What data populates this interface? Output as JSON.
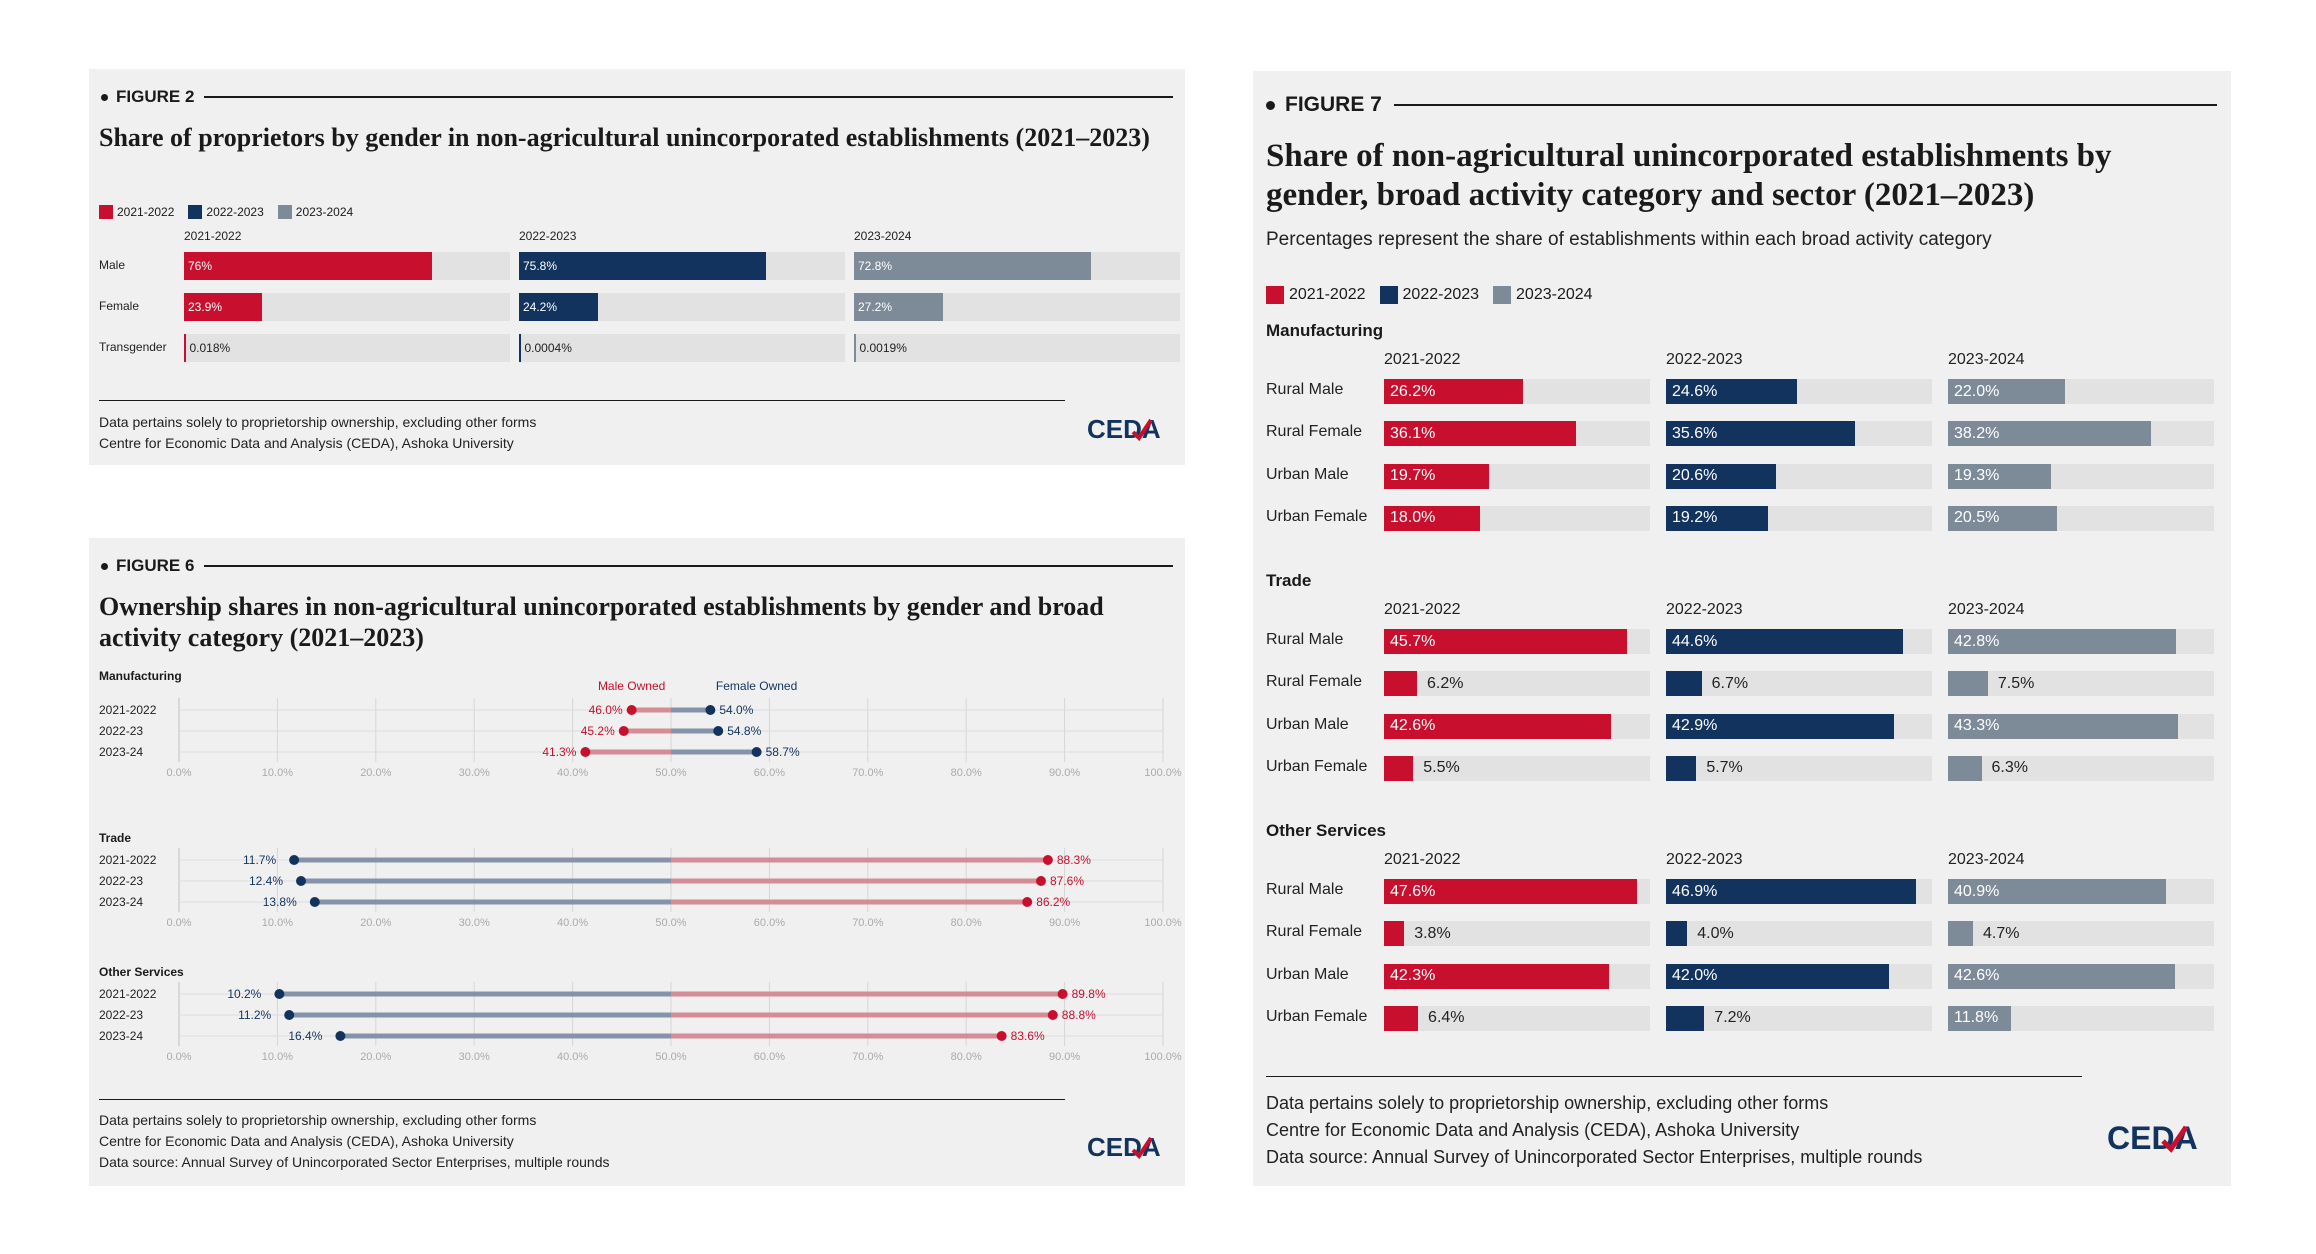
{
  "colors": {
    "y2021": "#c8102e",
    "y2022": "#13335f",
    "y2023": "#7d8b99",
    "male": "#c8102e",
    "female": "#13335f"
  },
  "fig2": {
    "label": "FIGURE 2",
    "title": "Share of proprietors by gender in non-agricultural unincorporated establishments (2021–2023)",
    "legend": [
      "2021-2022",
      "2022-2023",
      "2023-2024"
    ],
    "footer": [
      "Data pertains solely to proprietorship ownership, excluding other forms",
      "Centre for Economic Data and Analysis (CEDA), Ashoka University"
    ],
    "logo": "CEDA"
  },
  "fig6": {
    "label": "FIGURE 6",
    "title": "Ownership shares in non-agricultural unincorporated establishments by gender and broad activity category (2021–2023)",
    "footer": [
      "Data pertains solely to proprietorship ownership, excluding other forms",
      "Centre for Economic Data and Analysis (CEDA), Ashoka University",
      "Data source: Annual Survey of Unincorporated Sector Enterprises, multiple rounds"
    ],
    "logo": "CEDA"
  },
  "fig7": {
    "label": "FIGURE 7",
    "title": "Share of non-agricultural unincorporated establishments by gender, broad activity category and sector (2021–2023)",
    "subtitle": "Percentages represent the share of establishments within each broad activity category",
    "legend": [
      "2021-2022",
      "2022-2023",
      "2023-2024"
    ],
    "footer": [
      "Data pertains solely to proprietorship ownership, excluding other forms",
      "Centre for Economic Data and Analysis (CEDA), Ashoka University",
      "Data source: Annual Survey of Unincorporated Sector Enterprises, multiple rounds"
    ],
    "logo": "CEDA"
  },
  "chart_data": [
    {
      "id": "fig2",
      "type": "bar",
      "title": "Share of proprietors by gender in non-agricultural unincorporated establishments (2021–2023)",
      "categories": [
        "Male",
        "Female",
        "Transgender"
      ],
      "series": [
        {
          "name": "2021-2022",
          "values": [
            76,
            23.9,
            0.018
          ],
          "labels": [
            "76%",
            "23.9%",
            "0.018%"
          ]
        },
        {
          "name": "2022-2023",
          "values": [
            75.8,
            24.2,
            0.0004
          ],
          "labels": [
            "75.8%",
            "24.2%",
            "0.0004%"
          ]
        },
        {
          "name": "2023-2024",
          "values": [
            72.8,
            27.2,
            0.0019
          ],
          "labels": [
            "72.8%",
            "27.2%",
            "0.0019%"
          ]
        }
      ],
      "ylim": [
        0,
        100
      ]
    },
    {
      "id": "fig6",
      "type": "scatter",
      "title": "Ownership shares in non-agricultural unincorporated establishments by gender and broad activity category (2021–2023)",
      "annotations": {
        "male": "Male Owned",
        "female": "Female Owned"
      },
      "xticks": [
        "0.0%",
        "10.0%",
        "20.0%",
        "30.0%",
        "40.0%",
        "50.0%",
        "60.0%",
        "70.0%",
        "80.0%",
        "90.0%",
        "100.0%"
      ],
      "xlim": [
        0,
        100
      ],
      "groups": [
        {
          "name": "Manufacturing",
          "rows": [
            {
              "year": "2021-2022",
              "male": 46.0,
              "female": 54.0,
              "male_label": "46.0%",
              "female_label": "54.0%"
            },
            {
              "year": "2022-23",
              "male": 45.2,
              "female": 54.8,
              "male_label": "45.2%",
              "female_label": "54.8%"
            },
            {
              "year": "2023-24",
              "male": 41.3,
              "female": 58.7,
              "male_label": "41.3%",
              "female_label": "58.7%"
            }
          ]
        },
        {
          "name": "Trade",
          "rows": [
            {
              "year": "2021-2022",
              "male": 88.3,
              "female": 11.7,
              "male_label": "88.3%",
              "female_label": "11.7%"
            },
            {
              "year": "2022-23",
              "male": 87.6,
              "female": 12.4,
              "male_label": "87.6%",
              "female_label": "12.4%"
            },
            {
              "year": "2023-24",
              "male": 86.2,
              "female": 13.8,
              "male_label": "86.2%",
              "female_label": "13.8%"
            }
          ]
        },
        {
          "name": "Other Services",
          "rows": [
            {
              "year": "2021-2022",
              "male": 89.8,
              "female": 10.2,
              "male_label": "89.8%",
              "female_label": "10.2%"
            },
            {
              "year": "2022-23",
              "male": 88.8,
              "female": 11.2,
              "male_label": "88.8%",
              "female_label": "11.2%"
            },
            {
              "year": "2023-24",
              "male": 83.6,
              "female": 16.4,
              "male_label": "83.6%",
              "female_label": "16.4%"
            }
          ]
        }
      ]
    },
    {
      "id": "fig7",
      "type": "bar",
      "title": "Share of non-agricultural unincorporated establishments by gender, broad activity category and sector (2021–2023)",
      "years": [
        "2021-2022",
        "2022-2023",
        "2023-2024"
      ],
      "ylim": [
        0,
        50
      ],
      "groups": [
        {
          "name": "Manufacturing",
          "rows": [
            {
              "label": "Rural Male",
              "values": [
                26.2,
                24.6,
                22.0
              ],
              "labels": [
                "26.2%",
                "24.6%",
                "22.0%"
              ]
            },
            {
              "label": "Rural Female",
              "values": [
                36.1,
                35.6,
                38.2
              ],
              "labels": [
                "36.1%",
                "35.6%",
                "38.2%"
              ]
            },
            {
              "label": "Urban Male",
              "values": [
                19.7,
                20.6,
                19.3
              ],
              "labels": [
                "19.7%",
                "20.6%",
                "19.3%"
              ]
            },
            {
              "label": "Urban Female",
              "values": [
                18.0,
                19.2,
                20.5
              ],
              "labels": [
                "18.0%",
                "19.2%",
                "20.5%"
              ]
            }
          ]
        },
        {
          "name": "Trade",
          "rows": [
            {
              "label": "Rural Male",
              "values": [
                45.7,
                44.6,
                42.8
              ],
              "labels": [
                "45.7%",
                "44.6%",
                "42.8%"
              ]
            },
            {
              "label": "Rural Female",
              "values": [
                6.2,
                6.7,
                7.5
              ],
              "labels": [
                "6.2%",
                "6.7%",
                "7.5%"
              ]
            },
            {
              "label": "Urban Male",
              "values": [
                42.6,
                42.9,
                43.3
              ],
              "labels": [
                "42.6%",
                "42.9%",
                "43.3%"
              ]
            },
            {
              "label": "Urban Female",
              "values": [
                5.5,
                5.7,
                6.3
              ],
              "labels": [
                "5.5%",
                "5.7%",
                "6.3%"
              ]
            }
          ]
        },
        {
          "name": "Other Services",
          "rows": [
            {
              "label": "Rural Male",
              "values": [
                47.6,
                46.9,
                40.9
              ],
              "labels": [
                "47.6%",
                "46.9%",
                "40.9%"
              ]
            },
            {
              "label": "Rural Female",
              "values": [
                3.8,
                4.0,
                4.7
              ],
              "labels": [
                "3.8%",
                "4.0%",
                "4.7%"
              ]
            },
            {
              "label": "Urban Male",
              "values": [
                42.3,
                42.0,
                42.6
              ],
              "labels": [
                "42.3%",
                "42.0%",
                "42.6%"
              ]
            },
            {
              "label": "Urban Female",
              "values": [
                6.4,
                7.2,
                11.8
              ],
              "labels": [
                "6.4%",
                "7.2%",
                "11.8%"
              ]
            }
          ]
        }
      ]
    }
  ]
}
